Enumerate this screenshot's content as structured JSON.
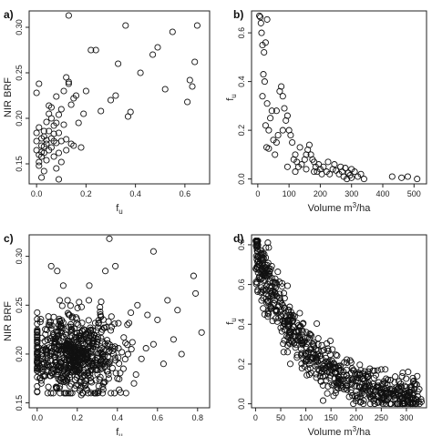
{
  "chart_data": [
    {
      "id": "a",
      "letter": "a)",
      "type": "scatter",
      "xlabel": "f",
      "xlabel_sub": "u",
      "ylabel": "NIR BRF",
      "xlim": [
        -0.03,
        0.7
      ],
      "ylim": [
        0.128,
        0.318
      ],
      "xticks": [
        "0.0",
        "0.2",
        "0.4",
        "0.6"
      ],
      "xtick_values": [
        0.0,
        0.2,
        0.4,
        0.6
      ],
      "yticks": [
        "0.15",
        "0.20",
        "0.25",
        "0.30"
      ],
      "ytick_values": [
        0.15,
        0.2,
        0.25,
        0.3
      ],
      "marker": "open-circle",
      "points": [
        [
          0.0,
          0.184
        ],
        [
          0.0,
          0.175
        ],
        [
          0.0,
          0.165
        ],
        [
          0.01,
          0.16
        ],
        [
          0.01,
          0.152
        ],
        [
          0.01,
          0.148
        ],
        [
          0.01,
          0.19
        ],
        [
          0.02,
          0.17
        ],
        [
          0.02,
          0.163
        ],
        [
          0.02,
          0.158
        ],
        [
          0.02,
          0.178
        ],
        [
          0.03,
          0.186
        ],
        [
          0.03,
          0.18
        ],
        [
          0.03,
          0.169
        ],
        [
          0.03,
          0.162
        ],
        [
          0.04,
          0.176
        ],
        [
          0.04,
          0.154
        ],
        [
          0.04,
          0.196
        ],
        [
          0.04,
          0.172
        ],
        [
          0.05,
          0.165
        ],
        [
          0.05,
          0.205
        ],
        [
          0.05,
          0.186
        ],
        [
          0.05,
          0.214
        ],
        [
          0.06,
          0.2
        ],
        [
          0.06,
          0.178
        ],
        [
          0.06,
          0.168
        ],
        [
          0.06,
          0.212
        ],
        [
          0.07,
          0.192
        ],
        [
          0.07,
          0.175
        ],
        [
          0.07,
          0.158
        ],
        [
          0.07,
          0.183
        ],
        [
          0.08,
          0.195
        ],
        [
          0.08,
          0.173
        ],
        [
          0.08,
          0.145
        ],
        [
          0.08,
          0.224
        ],
        [
          0.09,
          0.204
        ],
        [
          0.09,
          0.184
        ],
        [
          0.09,
          0.162
        ],
        [
          0.1,
          0.175
        ],
        [
          0.1,
          0.21
        ],
        [
          0.1,
          0.152
        ],
        [
          0.11,
          0.193
        ],
        [
          0.11,
          0.23
        ],
        [
          0.12,
          0.165
        ],
        [
          0.12,
          0.245
        ],
        [
          0.12,
          0.177
        ],
        [
          0.13,
          0.238
        ],
        [
          0.13,
          0.313
        ],
        [
          0.13,
          0.24
        ],
        [
          0.14,
          0.172
        ],
        [
          0.14,
          0.215
        ],
        [
          0.15,
          0.222
        ],
        [
          0.15,
          0.17
        ],
        [
          0.16,
          0.225
        ],
        [
          0.17,
          0.195
        ],
        [
          0.18,
          0.168
        ],
        [
          0.19,
          0.205
        ],
        [
          0.2,
          0.23
        ],
        [
          0.22,
          0.275
        ],
        [
          0.24,
          0.275
        ],
        [
          0.26,
          0.208
        ],
        [
          0.3,
          0.22
        ],
        [
          0.32,
          0.225
        ],
        [
          0.33,
          0.26
        ],
        [
          0.36,
          0.302
        ],
        [
          0.37,
          0.202
        ],
        [
          0.38,
          0.207
        ],
        [
          0.42,
          0.25
        ],
        [
          0.47,
          0.27
        ],
        [
          0.49,
          0.278
        ],
        [
          0.52,
          0.232
        ],
        [
          0.55,
          0.295
        ],
        [
          0.61,
          0.218
        ],
        [
          0.62,
          0.242
        ],
        [
          0.64,
          0.262
        ],
        [
          0.65,
          0.302
        ],
        [
          0.63,
          0.235
        ],
        [
          0.01,
          0.238
        ],
        [
          0.0,
          0.228
        ],
        [
          0.02,
          0.135
        ],
        [
          0.03,
          0.142
        ],
        [
          0.05,
          0.128
        ],
        [
          0.09,
          0.133
        ]
      ]
    },
    {
      "id": "b",
      "letter": "b)",
      "type": "scatter",
      "xlabel": "Volume m³/ha",
      "xlabel_pre": "Volume m",
      "xlabel_sup": "3",
      "xlabel_post": "/ha",
      "ylabel": "f",
      "ylabel_sub": "u",
      "xlim": [
        -20,
        540
      ],
      "ylim": [
        -0.02,
        0.69
      ],
      "xticks": [
        "0",
        "100",
        "200",
        "300",
        "400",
        "500"
      ],
      "xtick_values": [
        0,
        100,
        200,
        300,
        400,
        500
      ],
      "yticks": [
        "0.0",
        "0.2",
        "0.4",
        "0.6"
      ],
      "ytick_values": [
        0.0,
        0.2,
        0.4,
        0.6
      ],
      "marker": "open-circle",
      "points": [
        [
          5,
          0.67
        ],
        [
          8,
          0.665
        ],
        [
          10,
          0.64
        ],
        [
          30,
          0.655
        ],
        [
          12,
          0.6
        ],
        [
          15,
          0.55
        ],
        [
          20,
          0.52
        ],
        [
          25,
          0.56
        ],
        [
          18,
          0.43
        ],
        [
          22,
          0.4
        ],
        [
          15,
          0.34
        ],
        [
          30,
          0.31
        ],
        [
          35,
          0.2
        ],
        [
          25,
          0.22
        ],
        [
          40,
          0.25
        ],
        [
          28,
          0.13
        ],
        [
          35,
          0.125
        ],
        [
          45,
          0.28
        ],
        [
          50,
          0.16
        ],
        [
          55,
          0.1
        ],
        [
          60,
          0.28
        ],
        [
          65,
          0.18
        ],
        [
          70,
          0.36
        ],
        [
          75,
          0.38
        ],
        [
          80,
          0.34
        ],
        [
          85,
          0.29
        ],
        [
          90,
          0.24
        ],
        [
          95,
          0.26
        ],
        [
          100,
          0.2
        ],
        [
          105,
          0.18
        ],
        [
          110,
          0.15
        ],
        [
          115,
          0.08
        ],
        [
          120,
          0.1
        ],
        [
          125,
          0.07
        ],
        [
          130,
          0.05
        ],
        [
          140,
          0.06
        ],
        [
          150,
          0.08
        ],
        [
          155,
          0.04
        ],
        [
          160,
          0.12
        ],
        [
          165,
          0.14
        ],
        [
          170,
          0.1
        ],
        [
          175,
          0.08
        ],
        [
          180,
          0.07
        ],
        [
          185,
          0.05
        ],
        [
          190,
          0.03
        ],
        [
          195,
          0.06
        ],
        [
          200,
          0.04
        ],
        [
          205,
          0.02
        ],
        [
          210,
          0.05
        ],
        [
          220,
          0.03
        ],
        [
          225,
          0.07
        ],
        [
          230,
          0.02
        ],
        [
          240,
          0.04
        ],
        [
          245,
          0.06
        ],
        [
          250,
          0.035
        ],
        [
          260,
          0.02
        ],
        [
          265,
          0.05
        ],
        [
          270,
          0.03
        ],
        [
          275,
          0.01
        ],
        [
          280,
          0.045
        ],
        [
          285,
          0.0
        ],
        [
          290,
          0.025
        ],
        [
          295,
          0.015
        ],
        [
          300,
          0.005
        ],
        [
          310,
          0.03
        ],
        [
          320,
          0.01
        ],
        [
          330,
          0.02
        ],
        [
          340,
          0.0
        ],
        [
          430,
          0.01
        ],
        [
          460,
          0.005
        ],
        [
          480,
          0.01
        ],
        [
          510,
          0.0
        ],
        [
          155,
          0.1
        ],
        [
          135,
          0.13
        ],
        [
          80,
          0.2
        ],
        [
          60,
          0.15
        ],
        [
          120,
          0.03
        ],
        [
          95,
          0.05
        ],
        [
          180,
          0.03
        ],
        [
          300,
          0.04
        ]
      ]
    },
    {
      "id": "c",
      "letter": "c)",
      "type": "scatter",
      "xlabel": "f",
      "xlabel_sub": "u",
      "ylabel": "NIR BRF",
      "xlim": [
        -0.04,
        0.86
      ],
      "ylim": [
        0.145,
        0.322
      ],
      "xticks": [
        "0.0",
        "0.2",
        "0.4",
        "0.6",
        "0.8"
      ],
      "xtick_values": [
        0.0,
        0.2,
        0.4,
        0.6,
        0.8
      ],
      "yticks": [
        "0.15",
        "0.20",
        "0.25",
        "0.30"
      ],
      "ytick_values": [
        0.15,
        0.2,
        0.25,
        0.3
      ],
      "marker": "open-circle",
      "cluster": {
        "count": 700,
        "x_center": 0.18,
        "x_spread": 0.11,
        "y_center": 0.2,
        "y_spread": 0.02,
        "seed": 17
      },
      "points": [
        [
          0.07,
          0.29
        ],
        [
          0.1,
          0.285
        ],
        [
          0.13,
          0.27
        ],
        [
          0.26,
          0.27
        ],
        [
          0.34,
          0.285
        ],
        [
          0.36,
          0.318
        ],
        [
          0.39,
          0.29
        ],
        [
          0.58,
          0.305
        ],
        [
          0.78,
          0.28
        ],
        [
          0.79,
          0.262
        ],
        [
          0.82,
          0.222
        ],
        [
          0.7,
          0.245
        ],
        [
          0.65,
          0.255
        ],
        [
          0.6,
          0.235
        ],
        [
          0.55,
          0.24
        ],
        [
          0.5,
          0.25
        ],
        [
          0.45,
          0.23
        ],
        [
          0.47,
          0.205
        ],
        [
          0.52,
          0.195
        ],
        [
          0.58,
          0.21
        ],
        [
          0.63,
          0.19
        ],
        [
          0.68,
          0.215
        ],
        [
          0.72,
          0.2
        ],
        [
          0.4,
          0.175
        ],
        [
          0.43,
          0.185
        ],
        [
          0.38,
          0.2
        ],
        [
          0.33,
          0.17
        ],
        [
          0.3,
          0.16
        ],
        [
          0.22,
          0.158
        ],
        [
          0.25,
          0.163
        ]
      ]
    },
    {
      "id": "d",
      "letter": "d)",
      "type": "scatter",
      "xlabel": "Volume m³/ha",
      "xlabel_pre": "Volume m",
      "xlabel_sup": "3",
      "xlabel_post": "/ha",
      "ylabel": "f",
      "ylabel_sub": "u",
      "xlim": [
        -8,
        340
      ],
      "ylim": [
        -0.02,
        0.85
      ],
      "xticks": [
        "0",
        "50",
        "100",
        "150",
        "200",
        "250",
        "300"
      ],
      "xtick_values": [
        0,
        50,
        100,
        150,
        200,
        250,
        300
      ],
      "yticks": [
        "0.0",
        "0.2",
        "0.4",
        "0.6",
        "0.8"
      ],
      "ytick_values": [
        0.0,
        0.2,
        0.4,
        0.6,
        0.8
      ],
      "marker": "open-circle",
      "cluster": {
        "count": 700,
        "x_max": 330,
        "decay": 90,
        "top": 0.78,
        "noise": 0.075,
        "seed": 29
      },
      "points": [
        [
          2,
          0.8
        ],
        [
          3,
          0.77
        ],
        [
          4,
          0.74
        ],
        [
          5,
          0.7
        ],
        [
          6,
          0.72
        ],
        [
          5,
          0.66
        ],
        [
          8,
          0.64
        ],
        [
          10,
          0.56
        ],
        [
          12,
          0.52
        ],
        [
          15,
          0.48
        ],
        [
          18,
          0.45
        ],
        [
          25,
          0.52
        ],
        [
          30,
          0.48
        ],
        [
          40,
          0.43
        ],
        [
          55,
          0.39
        ],
        [
          70,
          0.36
        ],
        [
          90,
          0.32
        ],
        [
          260,
          0.08
        ],
        [
          280,
          0.06
        ],
        [
          300,
          0.04
        ],
        [
          320,
          0.02
        ],
        [
          330,
          0.01
        ],
        [
          310,
          0.07
        ],
        [
          290,
          0.03
        ],
        [
          270,
          0.05
        ],
        [
          250,
          0.02
        ]
      ]
    }
  ]
}
